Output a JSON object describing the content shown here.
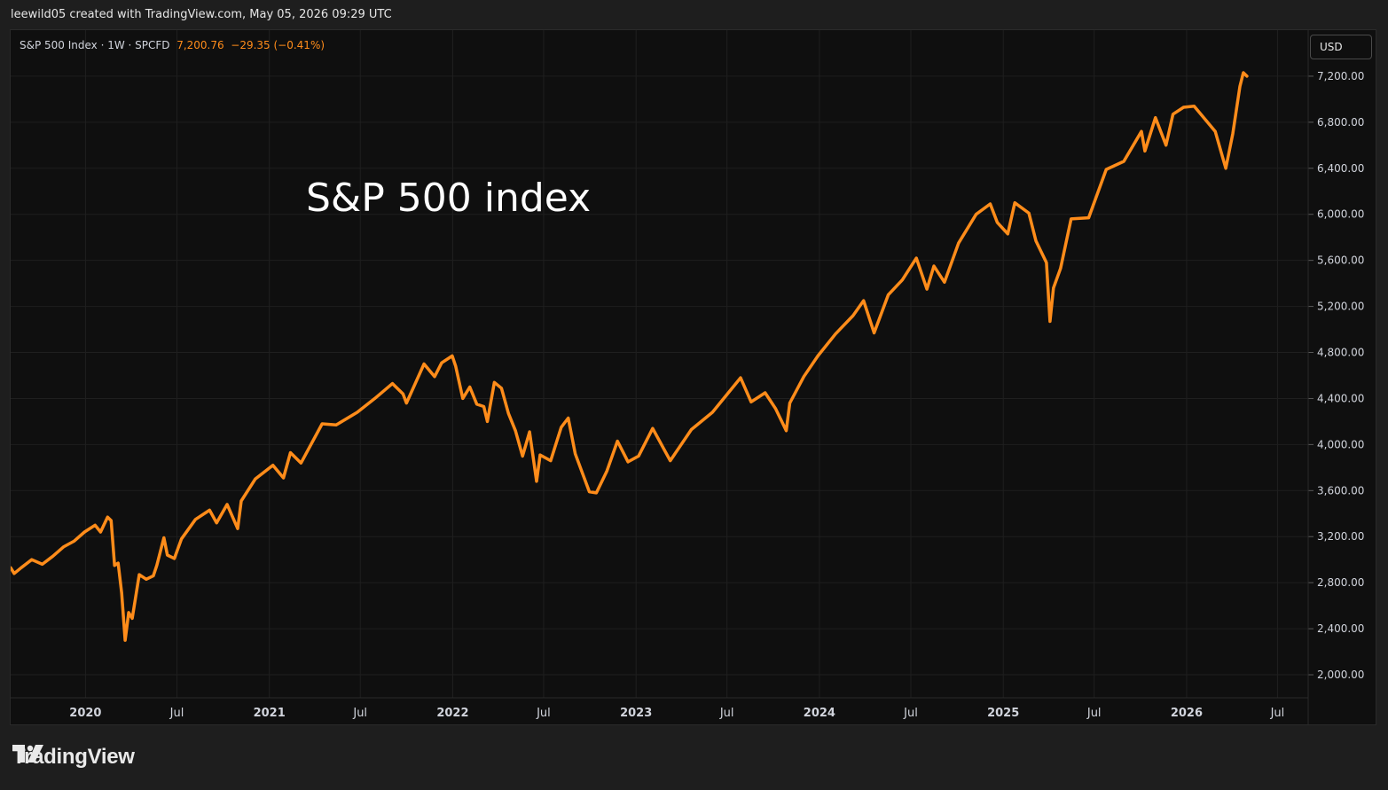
{
  "header": {
    "byline": "leewild05 created with TradingView.com, May 05, 2026 09:29 UTC"
  },
  "legend": {
    "symbol": "S&P 500 Index · 1W · SPCFD",
    "price": "7,200.76",
    "change": "−29.35 (−0.41%)"
  },
  "currency_button": {
    "label": "USD"
  },
  "brand": {
    "name": "TradingView",
    "icon": "tradingview-logo-icon"
  },
  "colors": {
    "line": "#ff8c1a",
    "background": "#0f0f0f",
    "grid": "#1f1f1f",
    "axis_text": "#d1d4dc"
  },
  "chart_data": {
    "type": "line",
    "title": "",
    "annotation": "S&P 500 index",
    "xlabel": "",
    "ylabel": "",
    "x_ticks": [
      {
        "label": "2020",
        "date": "2020-01-01",
        "bold": true
      },
      {
        "label": "Jul",
        "date": "2020-07-01",
        "bold": false
      },
      {
        "label": "2021",
        "date": "2021-01-01",
        "bold": true
      },
      {
        "label": "Jul",
        "date": "2021-07-01",
        "bold": false
      },
      {
        "label": "2022",
        "date": "2022-01-01",
        "bold": true
      },
      {
        "label": "Jul",
        "date": "2022-07-01",
        "bold": false
      },
      {
        "label": "2023",
        "date": "2023-01-01",
        "bold": true
      },
      {
        "label": "Jul",
        "date": "2023-07-01",
        "bold": false
      },
      {
        "label": "2024",
        "date": "2024-01-01",
        "bold": true
      },
      {
        "label": "Jul",
        "date": "2024-07-01",
        "bold": false
      },
      {
        "label": "2025",
        "date": "2025-01-01",
        "bold": true
      },
      {
        "label": "Jul",
        "date": "2025-07-01",
        "bold": false
      },
      {
        "label": "2026",
        "date": "2026-01-01",
        "bold": true
      },
      {
        "label": "Jul",
        "date": "2026-07-01",
        "bold": false
      }
    ],
    "y_ticks": [
      "7,200.00",
      "6,800.00",
      "6,400.00",
      "6,000.00",
      "5,600.00",
      "5,200.00",
      "4,800.00",
      "4,400.00",
      "4,000.00",
      "3,600.00",
      "3,200.00",
      "2,800.00",
      "2,400.00",
      "2,000.00"
    ],
    "y_tick_values": [
      7200,
      6800,
      6400,
      6000,
      5600,
      5200,
      4800,
      4400,
      4000,
      3600,
      3200,
      2800,
      2400,
      2000
    ],
    "xlim": [
      "2019-08-05",
      "2026-08-31"
    ],
    "ylim": [
      1800,
      7600
    ],
    "grid": true,
    "series": [
      {
        "color": "#ff8c1a",
        "points": [
          [
            "2019-08-05",
            2930
          ],
          [
            "2019-08-12",
            2880
          ],
          [
            "2019-08-26",
            2930
          ],
          [
            "2019-09-16",
            3000
          ],
          [
            "2019-10-07",
            2960
          ],
          [
            "2019-10-28",
            3030
          ],
          [
            "2019-11-18",
            3110
          ],
          [
            "2019-12-09",
            3160
          ],
          [
            "2019-12-30",
            3240
          ],
          [
            "2020-01-20",
            3300
          ],
          [
            "2020-01-31",
            3240
          ],
          [
            "2020-02-14",
            3370
          ],
          [
            "2020-02-21",
            3340
          ],
          [
            "2020-02-28",
            2950
          ],
          [
            "2020-03-06",
            2970
          ],
          [
            "2020-03-13",
            2710
          ],
          [
            "2020-03-20",
            2300
          ],
          [
            "2020-03-27",
            2540
          ],
          [
            "2020-04-03",
            2490
          ],
          [
            "2020-04-17",
            2870
          ],
          [
            "2020-05-01",
            2830
          ],
          [
            "2020-05-15",
            2860
          ],
          [
            "2020-05-22",
            2950
          ],
          [
            "2020-06-05",
            3190
          ],
          [
            "2020-06-12",
            3040
          ],
          [
            "2020-06-26",
            3010
          ],
          [
            "2020-07-10",
            3180
          ],
          [
            "2020-08-07",
            3350
          ],
          [
            "2020-09-04",
            3430
          ],
          [
            "2020-09-18",
            3320
          ],
          [
            "2020-10-09",
            3480
          ],
          [
            "2020-10-30",
            3270
          ],
          [
            "2020-11-06",
            3510
          ],
          [
            "2020-12-04",
            3700
          ],
          [
            "2021-01-08",
            3820
          ],
          [
            "2021-01-29",
            3710
          ],
          [
            "2021-02-12",
            3930
          ],
          [
            "2021-03-05",
            3840
          ],
          [
            "2021-04-16",
            4180
          ],
          [
            "2021-05-14",
            4170
          ],
          [
            "2021-06-25",
            4280
          ],
          [
            "2021-07-30",
            4400
          ],
          [
            "2021-09-03",
            4530
          ],
          [
            "2021-09-24",
            4440
          ],
          [
            "2021-10-01",
            4360
          ],
          [
            "2021-11-05",
            4700
          ],
          [
            "2021-11-26",
            4590
          ],
          [
            "2021-12-10",
            4710
          ],
          [
            "2021-12-31",
            4770
          ],
          [
            "2022-01-07",
            4680
          ],
          [
            "2022-01-21",
            4400
          ],
          [
            "2022-02-04",
            4500
          ],
          [
            "2022-02-18",
            4350
          ],
          [
            "2022-03-04",
            4330
          ],
          [
            "2022-03-11",
            4200
          ],
          [
            "2022-03-25",
            4540
          ],
          [
            "2022-04-08",
            4490
          ],
          [
            "2022-04-22",
            4270
          ],
          [
            "2022-05-06",
            4120
          ],
          [
            "2022-05-20",
            3900
          ],
          [
            "2022-06-03",
            4110
          ],
          [
            "2022-06-17",
            3680
          ],
          [
            "2022-06-24",
            3910
          ],
          [
            "2022-07-15",
            3860
          ],
          [
            "2022-08-05",
            4150
          ],
          [
            "2022-08-19",
            4230
          ],
          [
            "2022-09-02",
            3920
          ],
          [
            "2022-09-30",
            3590
          ],
          [
            "2022-10-14",
            3580
          ],
          [
            "2022-11-04",
            3770
          ],
          [
            "2022-11-25",
            4030
          ],
          [
            "2022-12-16",
            3850
          ],
          [
            "2023-01-06",
            3900
          ],
          [
            "2023-02-03",
            4140
          ],
          [
            "2023-03-10",
            3860
          ],
          [
            "2023-04-21",
            4130
          ],
          [
            "2023-06-02",
            4280
          ],
          [
            "2023-07-28",
            4580
          ],
          [
            "2023-08-18",
            4370
          ],
          [
            "2023-09-15",
            4450
          ],
          [
            "2023-10-06",
            4310
          ],
          [
            "2023-10-27",
            4120
          ],
          [
            "2023-11-03",
            4360
          ],
          [
            "2023-12-01",
            4590
          ],
          [
            "2023-12-29",
            4770
          ],
          [
            "2024-02-02",
            4960
          ],
          [
            "2024-03-08",
            5120
          ],
          [
            "2024-03-29",
            5250
          ],
          [
            "2024-04-19",
            4970
          ],
          [
            "2024-05-17",
            5300
          ],
          [
            "2024-06-14",
            5430
          ],
          [
            "2024-07-12",
            5620
          ],
          [
            "2024-08-02",
            5350
          ],
          [
            "2024-08-16",
            5550
          ],
          [
            "2024-09-06",
            5410
          ],
          [
            "2024-10-04",
            5750
          ],
          [
            "2024-11-08",
            6000
          ],
          [
            "2024-12-06",
            6090
          ],
          [
            "2024-12-20",
            5930
          ],
          [
            "2025-01-10",
            5830
          ],
          [
            "2025-01-24",
            6100
          ],
          [
            "2025-02-21",
            6010
          ],
          [
            "2025-03-07",
            5770
          ],
          [
            "2025-03-28",
            5580
          ],
          [
            "2025-04-04",
            5070
          ],
          [
            "2025-04-11",
            5360
          ],
          [
            "2025-04-25",
            5530
          ],
          [
            "2025-05-16",
            5960
          ],
          [
            "2025-06-20",
            5970
          ],
          [
            "2025-07-25",
            6390
          ],
          [
            "2025-08-29",
            6460
          ],
          [
            "2025-10-03",
            6720
          ],
          [
            "2025-10-10",
            6550
          ],
          [
            "2025-10-31",
            6840
          ],
          [
            "2025-11-21",
            6600
          ],
          [
            "2025-12-05",
            6870
          ],
          [
            "2025-12-26",
            6930
          ],
          [
            "2026-01-16",
            6940
          ],
          [
            "2026-02-06",
            6830
          ],
          [
            "2026-02-27",
            6720
          ],
          [
            "2026-03-20",
            6400
          ],
          [
            "2026-04-03",
            6700
          ],
          [
            "2026-04-17",
            7110
          ],
          [
            "2026-04-24",
            7230
          ],
          [
            "2026-05-01",
            7200
          ]
        ]
      }
    ]
  }
}
